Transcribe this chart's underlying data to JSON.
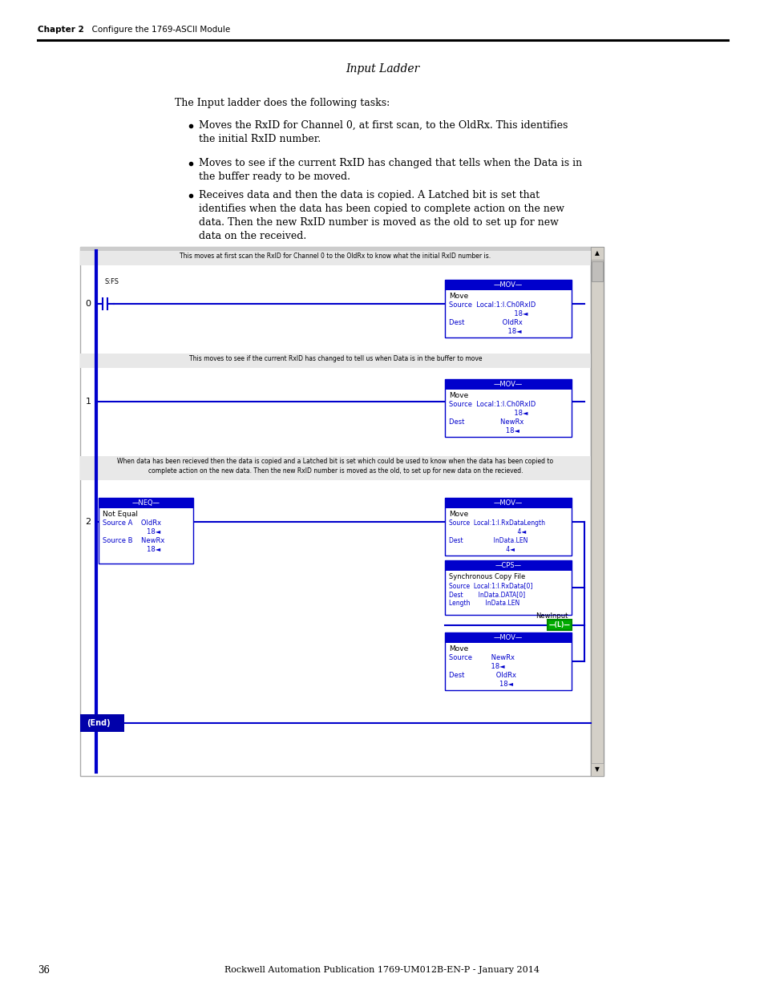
{
  "page_number": "36",
  "footer_text": "Rockwell Automation Publication 1769-UM012B-EN-P - January 2014",
  "header_chapter": "Chapter 2",
  "header_text": "Configure the 1769-ASCII Module",
  "section_title": "Input Ladder",
  "intro_text": "The Input ladder does the following tasks:",
  "bullet1": "Moves the RxID for Channel 0, at first scan, to the OldRx. This identifies\nthe initial RxID number.",
  "bullet2": "Moves to see if the current RxID has changed that tells when the Data is in\nthe buffer ready to be moved.",
  "bullet3": "Receives data and then the data is copied. A Latched bit is set that\nidentifies when the data has been copied to complete action on the new\ndata. Then the new RxID number is moved as the old to set up for new\ndata on the received.",
  "comment0": "This moves at first scan the RxID for Channel 0 to the OldRx to know what the initial RxID number is.",
  "comment1": "This moves to see if the current RxID has changed to tell us when Data is in the buffer to move",
  "comment2a": "When data has been recieved then the data is copied and a Latched bit is set which could be used to know when the data has been copied to",
  "comment2b": "complete action on the new data. Then the new RxID number is moved as the old, to set up for new data on the recieved.",
  "bg_color": "#ffffff",
  "text_color": "#000000",
  "blue_color": "#0000cc",
  "rung_blue": "#0000cc",
  "dark_blue": "#00008b",
  "end_blue": "#0000cc",
  "green_coil": "#008000",
  "coil_green": "#00aa00"
}
